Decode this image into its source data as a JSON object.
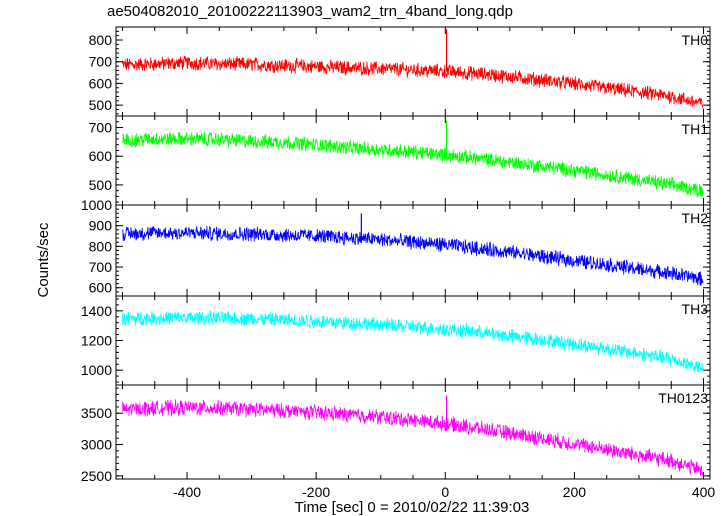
{
  "chart_data": {
    "type": "line",
    "title": "ae504082010_20100222113903_wam2_trn_4band_long.qdp",
    "xlabel": "Time [sec] 0 = 2010/02/22 11:39:03",
    "ylabel": "Counts/sec",
    "xlim": [
      -510,
      410
    ],
    "x_ticks": [
      -400,
      -200,
      0,
      200,
      400
    ],
    "grid": false,
    "panels": [
      {
        "name": "TH0",
        "color": "#ff0000",
        "ylim": [
          450,
          860
        ],
        "y_ticks": [
          500,
          600,
          700,
          800
        ],
        "x": [
          -500,
          -450,
          -400,
          -350,
          -300,
          -250,
          -200,
          -150,
          -100,
          -50,
          0,
          50,
          100,
          150,
          200,
          250,
          300,
          350,
          400
        ],
        "values": [
          685,
          690,
          695,
          690,
          688,
          682,
          678,
          672,
          668,
          662,
          655,
          645,
          632,
          615,
          598,
          578,
          560,
          540,
          505
        ],
        "spike": {
          "x": 2,
          "value": 850
        }
      },
      {
        "name": "TH1",
        "color": "#00ff00",
        "ylim": [
          430,
          740
        ],
        "y_ticks": [
          500,
          600,
          700
        ],
        "x": [
          -500,
          -450,
          -400,
          -350,
          -300,
          -250,
          -200,
          -150,
          -100,
          -50,
          0,
          50,
          100,
          150,
          200,
          250,
          300,
          350,
          400
        ],
        "values": [
          655,
          660,
          660,
          658,
          652,
          648,
          640,
          630,
          622,
          615,
          605,
          592,
          578,
          565,
          550,
          535,
          518,
          500,
          480
        ],
        "spike": {
          "x": 2,
          "value": 725
        }
      },
      {
        "name": "TH2",
        "color": "#0000ff",
        "ylim": [
          560,
          1000
        ],
        "y_ticks": [
          600,
          700,
          800,
          900,
          1000
        ],
        "x": [
          -500,
          -450,
          -400,
          -350,
          -300,
          -250,
          -200,
          -150,
          -100,
          -50,
          0,
          50,
          100,
          150,
          200,
          250,
          300,
          350,
          400
        ],
        "values": [
          860,
          865,
          865,
          862,
          860,
          855,
          850,
          842,
          832,
          820,
          808,
          790,
          772,
          752,
          730,
          712,
          690,
          670,
          640
        ],
        "spike": {
          "x": -130,
          "value": 960
        }
      },
      {
        "name": "TH3",
        "color": "#00ffff",
        "ylim": [
          900,
          1500
        ],
        "y_ticks": [
          1000,
          1200,
          1400
        ],
        "x": [
          -500,
          -450,
          -400,
          -350,
          -300,
          -250,
          -200,
          -150,
          -100,
          -50,
          0,
          50,
          100,
          150,
          200,
          250,
          300,
          350,
          400
        ],
        "values": [
          1345,
          1350,
          1352,
          1350,
          1345,
          1338,
          1330,
          1318,
          1305,
          1290,
          1275,
          1255,
          1230,
          1205,
          1175,
          1145,
          1110,
          1075,
          1010
        ],
        "spike": null
      },
      {
        "name": "TH0123",
        "color": "#ff00ff",
        "ylim": [
          2450,
          3950
        ],
        "y_ticks": [
          2500,
          3000,
          3500
        ],
        "x": [
          -500,
          -450,
          -400,
          -350,
          -300,
          -250,
          -200,
          -150,
          -100,
          -50,
          0,
          50,
          100,
          150,
          200,
          250,
          300,
          350,
          400
        ],
        "values": [
          3560,
          3580,
          3590,
          3580,
          3560,
          3540,
          3510,
          3475,
          3440,
          3390,
          3330,
          3260,
          3180,
          3100,
          3010,
          2920,
          2830,
          2740,
          2580
        ],
        "spike": {
          "x": 2,
          "value": 3780
        }
      }
    ]
  }
}
